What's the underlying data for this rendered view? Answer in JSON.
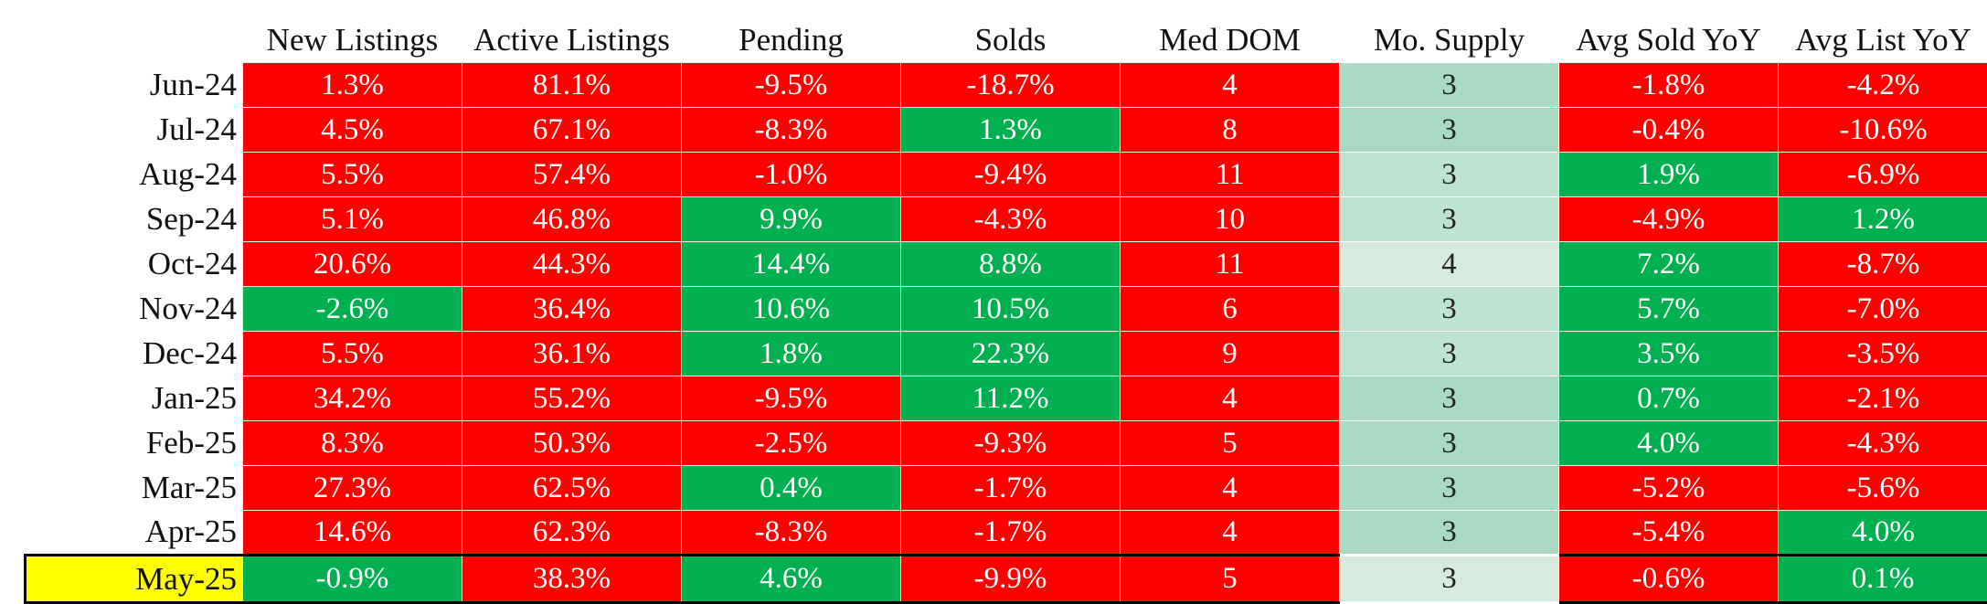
{
  "colors": {
    "negative": "#ff0000",
    "positive": "#00b050",
    "supply_dark": "#a9d9c2",
    "supply_mid": "#bfe3d1",
    "supply_light": "#d6ebe0",
    "current_month_highlight": "#ffff00"
  },
  "table": {
    "columns": [
      "New Listings",
      "Active Listings",
      "Pending",
      "Solds",
      "Med DOM",
      "Mo. Supply",
      "Avg Sold YoY",
      "Avg List YoY"
    ],
    "rows": [
      {
        "month": "Jun-24",
        "cells": [
          {
            "text": "1.3%",
            "fill": "negative"
          },
          {
            "text": "81.1%",
            "fill": "negative"
          },
          {
            "text": "-9.5%",
            "fill": "negative"
          },
          {
            "text": "-18.7%",
            "fill": "negative"
          },
          {
            "text": "4",
            "fill": "negative"
          },
          {
            "text": "3",
            "fill": "supply_dark"
          },
          {
            "text": "-1.8%",
            "fill": "negative"
          },
          {
            "text": "-4.2%",
            "fill": "negative"
          }
        ]
      },
      {
        "month": "Jul-24",
        "cells": [
          {
            "text": "4.5%",
            "fill": "negative"
          },
          {
            "text": "67.1%",
            "fill": "negative"
          },
          {
            "text": "-8.3%",
            "fill": "negative"
          },
          {
            "text": "1.3%",
            "fill": "positive"
          },
          {
            "text": "8",
            "fill": "negative"
          },
          {
            "text": "3",
            "fill": "supply_dark"
          },
          {
            "text": "-0.4%",
            "fill": "negative"
          },
          {
            "text": "-10.6%",
            "fill": "negative"
          }
        ]
      },
      {
        "month": "Aug-24",
        "cells": [
          {
            "text": "5.5%",
            "fill": "negative"
          },
          {
            "text": "57.4%",
            "fill": "negative"
          },
          {
            "text": "-1.0%",
            "fill": "negative"
          },
          {
            "text": "-9.4%",
            "fill": "negative"
          },
          {
            "text": "11",
            "fill": "negative"
          },
          {
            "text": "3",
            "fill": "supply_mid"
          },
          {
            "text": "1.9%",
            "fill": "positive"
          },
          {
            "text": "-6.9%",
            "fill": "negative"
          }
        ]
      },
      {
        "month": "Sep-24",
        "cells": [
          {
            "text": "5.1%",
            "fill": "negative"
          },
          {
            "text": "46.8%",
            "fill": "negative"
          },
          {
            "text": "9.9%",
            "fill": "positive"
          },
          {
            "text": "-4.3%",
            "fill": "negative"
          },
          {
            "text": "10",
            "fill": "negative"
          },
          {
            "text": "3",
            "fill": "supply_mid"
          },
          {
            "text": "-4.9%",
            "fill": "negative"
          },
          {
            "text": "1.2%",
            "fill": "positive"
          }
        ]
      },
      {
        "month": "Oct-24",
        "cells": [
          {
            "text": "20.6%",
            "fill": "negative"
          },
          {
            "text": "44.3%",
            "fill": "negative"
          },
          {
            "text": "14.4%",
            "fill": "positive"
          },
          {
            "text": "8.8%",
            "fill": "positive"
          },
          {
            "text": "11",
            "fill": "negative"
          },
          {
            "text": "4",
            "fill": "supply_light"
          },
          {
            "text": "7.2%",
            "fill": "positive"
          },
          {
            "text": "-8.7%",
            "fill": "negative"
          }
        ]
      },
      {
        "month": "Nov-24",
        "cells": [
          {
            "text": "-2.6%",
            "fill": "positive"
          },
          {
            "text": "36.4%",
            "fill": "negative"
          },
          {
            "text": "10.6%",
            "fill": "positive"
          },
          {
            "text": "10.5%",
            "fill": "positive"
          },
          {
            "text": "6",
            "fill": "negative"
          },
          {
            "text": "3",
            "fill": "supply_mid"
          },
          {
            "text": "5.7%",
            "fill": "positive"
          },
          {
            "text": "-7.0%",
            "fill": "negative"
          }
        ]
      },
      {
        "month": "Dec-24",
        "cells": [
          {
            "text": "5.5%",
            "fill": "negative"
          },
          {
            "text": "36.1%",
            "fill": "negative"
          },
          {
            "text": "1.8%",
            "fill": "positive"
          },
          {
            "text": "22.3%",
            "fill": "positive"
          },
          {
            "text": "9",
            "fill": "negative"
          },
          {
            "text": "3",
            "fill": "supply_mid"
          },
          {
            "text": "3.5%",
            "fill": "positive"
          },
          {
            "text": "-3.5%",
            "fill": "negative"
          }
        ]
      },
      {
        "month": "Jan-25",
        "cells": [
          {
            "text": "34.2%",
            "fill": "negative"
          },
          {
            "text": "55.2%",
            "fill": "negative"
          },
          {
            "text": "-9.5%",
            "fill": "negative"
          },
          {
            "text": "11.2%",
            "fill": "positive"
          },
          {
            "text": "4",
            "fill": "negative"
          },
          {
            "text": "3",
            "fill": "supply_dark"
          },
          {
            "text": "0.7%",
            "fill": "positive"
          },
          {
            "text": "-2.1%",
            "fill": "negative"
          }
        ]
      },
      {
        "month": "Feb-25",
        "cells": [
          {
            "text": "8.3%",
            "fill": "negative"
          },
          {
            "text": "50.3%",
            "fill": "negative"
          },
          {
            "text": "-2.5%",
            "fill": "negative"
          },
          {
            "text": "-9.3%",
            "fill": "negative"
          },
          {
            "text": "5",
            "fill": "negative"
          },
          {
            "text": "3",
            "fill": "supply_dark"
          },
          {
            "text": "4.0%",
            "fill": "positive"
          },
          {
            "text": "-4.3%",
            "fill": "negative"
          }
        ]
      },
      {
        "month": "Mar-25",
        "cells": [
          {
            "text": "27.3%",
            "fill": "negative"
          },
          {
            "text": "62.5%",
            "fill": "negative"
          },
          {
            "text": "0.4%",
            "fill": "positive"
          },
          {
            "text": "-1.7%",
            "fill": "negative"
          },
          {
            "text": "4",
            "fill": "negative"
          },
          {
            "text": "3",
            "fill": "supply_dark"
          },
          {
            "text": "-5.2%",
            "fill": "negative"
          },
          {
            "text": "-5.6%",
            "fill": "negative"
          }
        ]
      },
      {
        "month": "Apr-25",
        "cells": [
          {
            "text": "14.6%",
            "fill": "negative"
          },
          {
            "text": "62.3%",
            "fill": "negative"
          },
          {
            "text": "-8.3%",
            "fill": "negative"
          },
          {
            "text": "-1.7%",
            "fill": "negative"
          },
          {
            "text": "4",
            "fill": "negative"
          },
          {
            "text": "3",
            "fill": "supply_dark"
          },
          {
            "text": "-5.4%",
            "fill": "negative"
          },
          {
            "text": "4.0%",
            "fill": "positive"
          }
        ]
      },
      {
        "month": "May-25",
        "highlight": true,
        "cells": [
          {
            "text": "-0.9%",
            "fill": "positive"
          },
          {
            "text": "38.3%",
            "fill": "negative"
          },
          {
            "text": "4.6%",
            "fill": "positive"
          },
          {
            "text": "-9.9%",
            "fill": "negative"
          },
          {
            "text": "5",
            "fill": "negative"
          },
          {
            "text": "3",
            "fill": "supply_light"
          },
          {
            "text": "-0.6%",
            "fill": "negative"
          },
          {
            "text": "0.1%",
            "fill": "positive"
          }
        ]
      }
    ]
  }
}
